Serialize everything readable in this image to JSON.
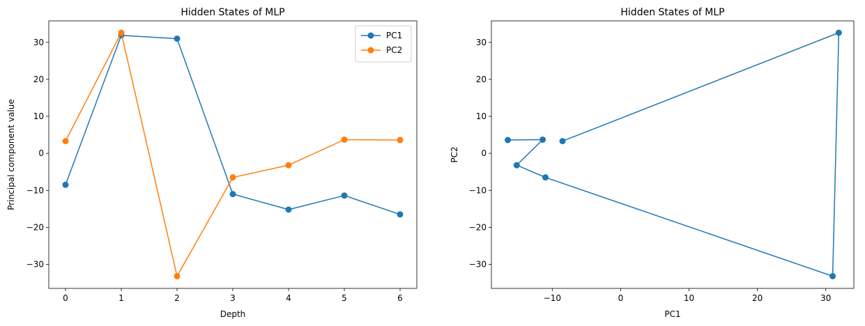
{
  "chart_data": [
    {
      "type": "line",
      "title": "Hidden States of MLP",
      "xlabel": "Depth",
      "ylabel": "Principal component value",
      "x": [
        0,
        1,
        2,
        3,
        4,
        5,
        6
      ],
      "xlim": [
        -0.3,
        6.3
      ],
      "ylim": [
        -36.5,
        35.8
      ],
      "xticks": [
        0,
        1,
        2,
        3,
        4,
        5,
        6
      ],
      "yticks": [
        -30,
        -20,
        -10,
        0,
        10,
        20,
        30
      ],
      "xtick_labels": [
        "0",
        "1",
        "2",
        "3",
        "4",
        "5",
        "6"
      ],
      "ytick_labels": [
        "−30",
        "−20",
        "−10",
        "0",
        "10",
        "20",
        "30"
      ],
      "grid": false,
      "legend": {
        "position": "top-right"
      },
      "series": [
        {
          "name": "PC1",
          "color": "#1f77b4",
          "marker": "circle",
          "values": [
            -8.5,
            31.9,
            31.0,
            -11.0,
            -15.2,
            -11.4,
            -16.5
          ]
        },
        {
          "name": "PC2",
          "color": "#ff7f0e",
          "marker": "circle",
          "values": [
            3.3,
            32.6,
            -33.2,
            -6.5,
            -3.2,
            3.7,
            3.6
          ]
        }
      ]
    },
    {
      "type": "line",
      "title": "Hidden States of MLP",
      "xlabel": "PC1",
      "ylabel": "PC2",
      "xlim": [
        -18.9,
        34.1
      ],
      "ylim": [
        -36.5,
        35.8
      ],
      "xticks": [
        -10,
        0,
        10,
        20,
        30
      ],
      "yticks": [
        -30,
        -20,
        -10,
        0,
        10,
        20,
        30
      ],
      "xtick_labels": [
        "−10",
        "0",
        "10",
        "20",
        "30"
      ],
      "ytick_labels": [
        "−30",
        "−20",
        "−10",
        "0",
        "10",
        "20",
        "30"
      ],
      "grid": false,
      "series": [
        {
          "color": "#1f77b4",
          "marker": "circle",
          "x": [
            -8.5,
            31.9,
            31.0,
            -11.0,
            -15.2,
            -11.4,
            -16.5
          ],
          "y": [
            3.3,
            32.6,
            -33.2,
            -6.5,
            -3.2,
            3.7,
            3.6
          ]
        }
      ]
    }
  ]
}
